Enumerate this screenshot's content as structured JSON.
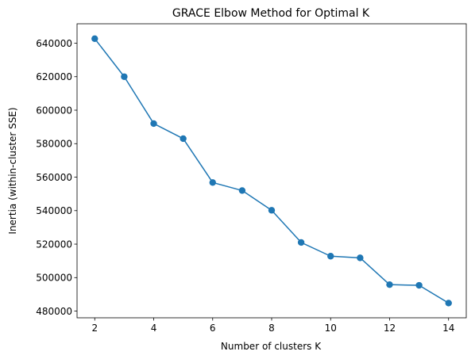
{
  "chart_data": {
    "type": "line",
    "title": "GRACE Elbow Method for Optimal K",
    "xlabel": "Number of clusters K",
    "ylabel": "Inertia (within-cluster SSE)",
    "x": [
      2,
      3,
      4,
      5,
      6,
      7,
      8,
      9,
      10,
      11,
      12,
      13,
      14
    ],
    "series": [
      {
        "values": [
          642700,
          620000,
          592000,
          583000,
          556800,
          552000,
          540200,
          521000,
          512800,
          511800,
          495800,
          495400,
          484800
        ],
        "color": "#1f77b4",
        "marker": "circle"
      }
    ],
    "xlim": [
      1.4,
      14.6
    ],
    "ylim": [
      476000,
      651600
    ],
    "xticks": [
      2,
      4,
      6,
      8,
      10,
      12,
      14
    ],
    "xtick_labels": [
      "2",
      "4",
      "6",
      "8",
      "10",
      "12",
      "14"
    ],
    "yticks": [
      480000,
      500000,
      520000,
      540000,
      560000,
      580000,
      600000,
      620000,
      640000
    ],
    "ytick_labels": [
      "480000",
      "500000",
      "520000",
      "540000",
      "560000",
      "580000",
      "600000",
      "620000",
      "640000"
    ],
    "grid": false,
    "legend": "none"
  }
}
